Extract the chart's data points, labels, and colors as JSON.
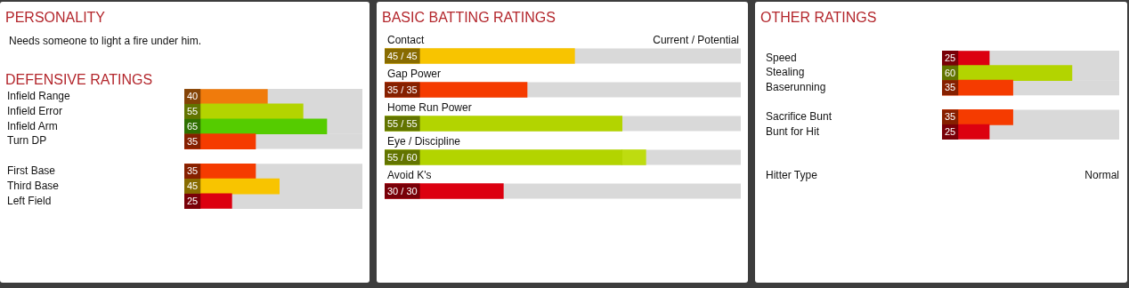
{
  "chart_data": [
    {
      "type": "other",
      "title": "PERSONALITY",
      "annotations": [
        "Needs someone to light a fire under him."
      ]
    },
    {
      "type": "bar",
      "title": "DEFENSIVE RATINGS",
      "orientation": "horizontal",
      "categories": [
        "Infield Range",
        "Infield Error",
        "Infield Arm",
        "Turn DP",
        null,
        "First Base",
        "Third Base",
        "Left Field"
      ],
      "values": [
        40,
        55,
        65,
        35,
        null,
        35,
        45,
        25
      ],
      "colors": [
        "#f07b0c",
        "#b3d400",
        "#55cc00",
        "#f53b00",
        null,
        "#f53b00",
        "#f8c400",
        "#dc0010"
      ],
      "xlim": [
        5,
        80
      ],
      "tick_labels": "y",
      "data_labels": true
    },
    {
      "type": "bar",
      "title": "BASIC BATTING RATINGS",
      "orientation": "horizontal",
      "categories": [
        "Contact",
        "Gap Power",
        "Home Run Power",
        "Eye / Discipline",
        "Avoid K's"
      ],
      "xlim": [
        5,
        80
      ],
      "tick_labels": "y",
      "stacked": true,
      "annotations": [
        "Current / Potential"
      ],
      "series": [
        {
          "colors": [
            "#f8c400",
            "#f53b00",
            "#b3d400",
            "#b3d400",
            "#dc0010"
          ],
          "values": [
            45,
            35,
            55,
            55,
            30
          ],
          "value_labels": [
            "45 / 45",
            "35 / 35",
            "55 / 55",
            "55 / 60",
            "30 / 30"
          ]
        },
        {
          "colors": [
            "#f8c400",
            "#f53b00",
            "#b3d400",
            "#bedc10",
            "#dc0010"
          ],
          "values": [
            null,
            null,
            null,
            5,
            null
          ]
        }
      ]
    },
    {
      "type": "bar",
      "title": "OTHER RATINGS",
      "orientation": "horizontal",
      "categories": [
        "Speed",
        "Stealing",
        "Baserunning",
        null,
        "Sacrifice Bunt",
        "Bunt for Hit"
      ],
      "values": [
        25,
        60,
        35,
        null,
        35,
        25
      ],
      "colors": [
        "#dc0010",
        "#b3d400",
        "#f53b00",
        null,
        "#f53b00",
        "#dc0010"
      ],
      "xlim": [
        5,
        80
      ],
      "tick_labels": "y",
      "data_labels": true,
      "annotations": [
        "Hitter Type",
        "Normal"
      ]
    }
  ]
}
